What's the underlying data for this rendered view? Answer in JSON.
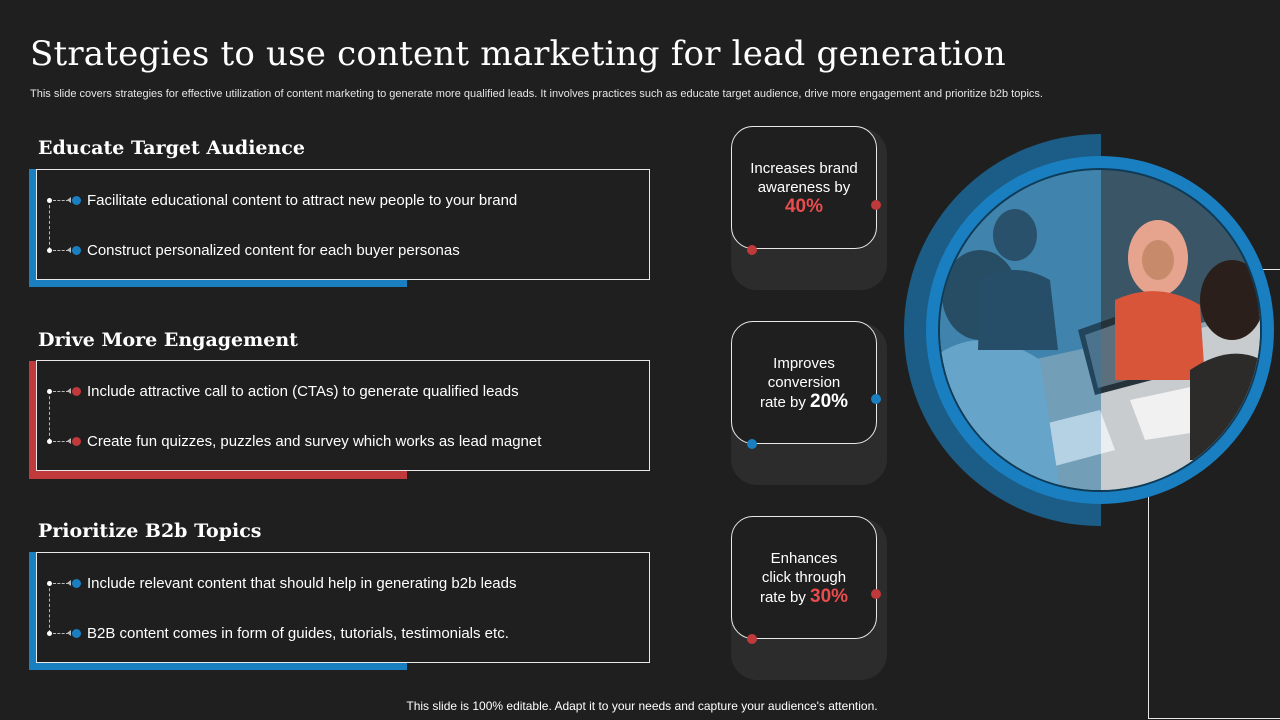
{
  "title": "Strategies to use content marketing for lead generation",
  "subtitle": "This slide covers strategies for effective utilization of content marketing to generate more qualified leads. It involves practices such as educate target audience, drive more engagement and prioritize b2b topics.",
  "colors": {
    "blue": "#1a7fc1",
    "red": "#c0393b",
    "background": "#1f1f1f"
  },
  "sections": [
    {
      "heading": "Educate Target Audience",
      "accent": "#1a7fc1",
      "bullets": [
        "Facilitate educational content to attract new people to your brand",
        "Construct personalized content for each buyer personas"
      ]
    },
    {
      "heading": "Drive More Engagement",
      "accent": "#c0393b",
      "bullets": [
        "Include attractive call to action (CTAs) to generate qualified leads",
        "Create fun quizzes, puzzles and survey which works as lead magnet"
      ]
    },
    {
      "heading": "Prioritize B2b Topics",
      "accent": "#1a7fc1",
      "bullets": [
        "Include relevant content that should help in generating b2b leads",
        "B2B content comes in form of guides, tutorials, testimonials etc."
      ]
    }
  ],
  "stats": [
    {
      "line1": "Increases brand",
      "line2": "awareness by",
      "prefix": "",
      "value": "40%",
      "value_color": "#e84c4c",
      "node_color": "#c0393b"
    },
    {
      "line1": "Improves",
      "line2": "conversion",
      "prefix": "rate by ",
      "value": "20%",
      "value_color": "#ffffff",
      "node_color": "#1a7fc1"
    },
    {
      "line1": "Enhances",
      "line2": "click through",
      "prefix": "rate by ",
      "value": "30%",
      "value_color": "#e84c4c",
      "node_color": "#c0393b"
    }
  ],
  "footer": "This slide is 100% editable. Adapt it to your needs and capture your audience's attention.",
  "image": {
    "icon": "team-meeting-photo"
  }
}
